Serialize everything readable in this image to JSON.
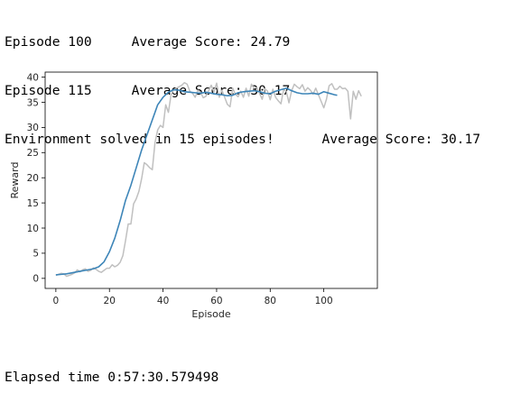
{
  "output": {
    "lines_before": [
      "Episode 100     Average Score: 24.79",
      "Episode 115     Average Score: 30.17",
      "Environment solved in 15 episodes!      Average Score: 30.17"
    ],
    "lines_after": [
      "Elapsed time 0:57:30.579498"
    ]
  },
  "chart_data": {
    "type": "line",
    "title": "",
    "xlabel": "Episode",
    "ylabel": "Reward",
    "xlim": [
      -4,
      120
    ],
    "ylim": [
      -2,
      41
    ],
    "xticks": [
      0,
      20,
      40,
      60,
      80,
      100
    ],
    "yticks": [
      0,
      5,
      10,
      15,
      20,
      25,
      30,
      35,
      40
    ],
    "grid": false,
    "legend": "none",
    "series": [
      {
        "color": "#c0c0c0",
        "x": [
          0,
          1,
          2,
          3,
          4,
          5,
          6,
          7,
          8,
          9,
          10,
          11,
          12,
          13,
          14,
          15,
          16,
          17,
          18,
          19,
          20,
          21,
          22,
          23,
          24,
          25,
          26,
          27,
          28,
          29,
          30,
          31,
          32,
          33,
          34,
          35,
          36,
          37,
          38,
          39,
          40,
          41,
          42,
          43,
          44,
          45,
          46,
          47,
          48,
          49,
          50,
          51,
          52,
          53,
          54,
          55,
          56,
          57,
          58,
          59,
          60,
          61,
          62,
          63,
          64,
          65,
          66,
          67,
          68,
          69,
          70,
          71,
          72,
          73,
          74,
          75,
          76,
          77,
          78,
          79,
          80,
          81,
          82,
          83,
          84,
          85,
          86,
          87,
          88,
          89,
          90,
          91,
          92,
          93,
          94,
          95,
          96,
          97,
          98,
          99,
          100,
          101,
          102,
          103,
          104,
          105,
          106,
          107,
          108,
          109,
          110,
          111,
          112,
          113,
          114
        ],
        "y": [
          0.6,
          0.8,
          1.0,
          0.9,
          0.4,
          0.6,
          0.8,
          1.1,
          1.7,
          1.3,
          1.7,
          1.9,
          1.4,
          1.6,
          2.1,
          1.8,
          1.4,
          1.2,
          1.6,
          2.0,
          2.0,
          2.7,
          2.3,
          2.6,
          3.2,
          4.5,
          7.5,
          10.8,
          10.8,
          14.8,
          15.8,
          17.3,
          19.8,
          23.0,
          22.6,
          22.0,
          21.6,
          27.0,
          29.5,
          30.4,
          30.0,
          34.5,
          33.0,
          36.5,
          37.5,
          37.8,
          38.1,
          38.4,
          38.9,
          38.6,
          37.2,
          36.8,
          36.0,
          37.4,
          37.0,
          35.9,
          36.2,
          37.3,
          38.4,
          37.0,
          38.8,
          36.0,
          37.4,
          36.0,
          34.6,
          34.1,
          37.8,
          36.6,
          36.1,
          37.2,
          36.0,
          37.8,
          36.2,
          38.6,
          37.8,
          37.9,
          36.8,
          35.6,
          37.7,
          37.2,
          35.5,
          37.6,
          36.0,
          35.3,
          34.7,
          37.5,
          37.2,
          34.9,
          37.3,
          38.6,
          38.1,
          37.7,
          38.5,
          37.2,
          37.9,
          37.4,
          36.6,
          37.8,
          36.5,
          35.2,
          33.9,
          35.6,
          38.3,
          38.7,
          37.6,
          37.6,
          38.2,
          37.7,
          37.8,
          37.2,
          31.7,
          37.2,
          35.6,
          37.3,
          36.2
        ]
      },
      {
        "color": "#3d85b8",
        "x": [
          0,
          2,
          4,
          6,
          8,
          10,
          12,
          14,
          16,
          18,
          20,
          22,
          24,
          26,
          28,
          30,
          32,
          34,
          36,
          38,
          40,
          42,
          44,
          46,
          48,
          50,
          52,
          54,
          56,
          58,
          60,
          62,
          64,
          66,
          68,
          70,
          72,
          74,
          76,
          78,
          80,
          82,
          84,
          86,
          88,
          90,
          92,
          94,
          96,
          98,
          100,
          102,
          104,
          105
        ],
        "y": [
          0.7,
          0.8,
          0.9,
          1.1,
          1.3,
          1.5,
          1.7,
          1.9,
          2.3,
          3.3,
          5.3,
          8.0,
          11.5,
          15.5,
          18.5,
          22.0,
          25.5,
          28.5,
          31.5,
          34.5,
          36.0,
          37.0,
          37.5,
          37.4,
          37.1,
          37.0,
          36.9,
          36.8,
          37.0,
          36.8,
          36.6,
          36.5,
          36.3,
          36.4,
          36.9,
          37.1,
          37.2,
          37.3,
          37.1,
          36.8,
          36.7,
          37.2,
          37.5,
          37.8,
          37.3,
          36.9,
          36.7,
          36.7,
          36.8,
          36.6,
          37.1,
          36.8,
          36.5,
          36.4
        ]
      }
    ]
  }
}
